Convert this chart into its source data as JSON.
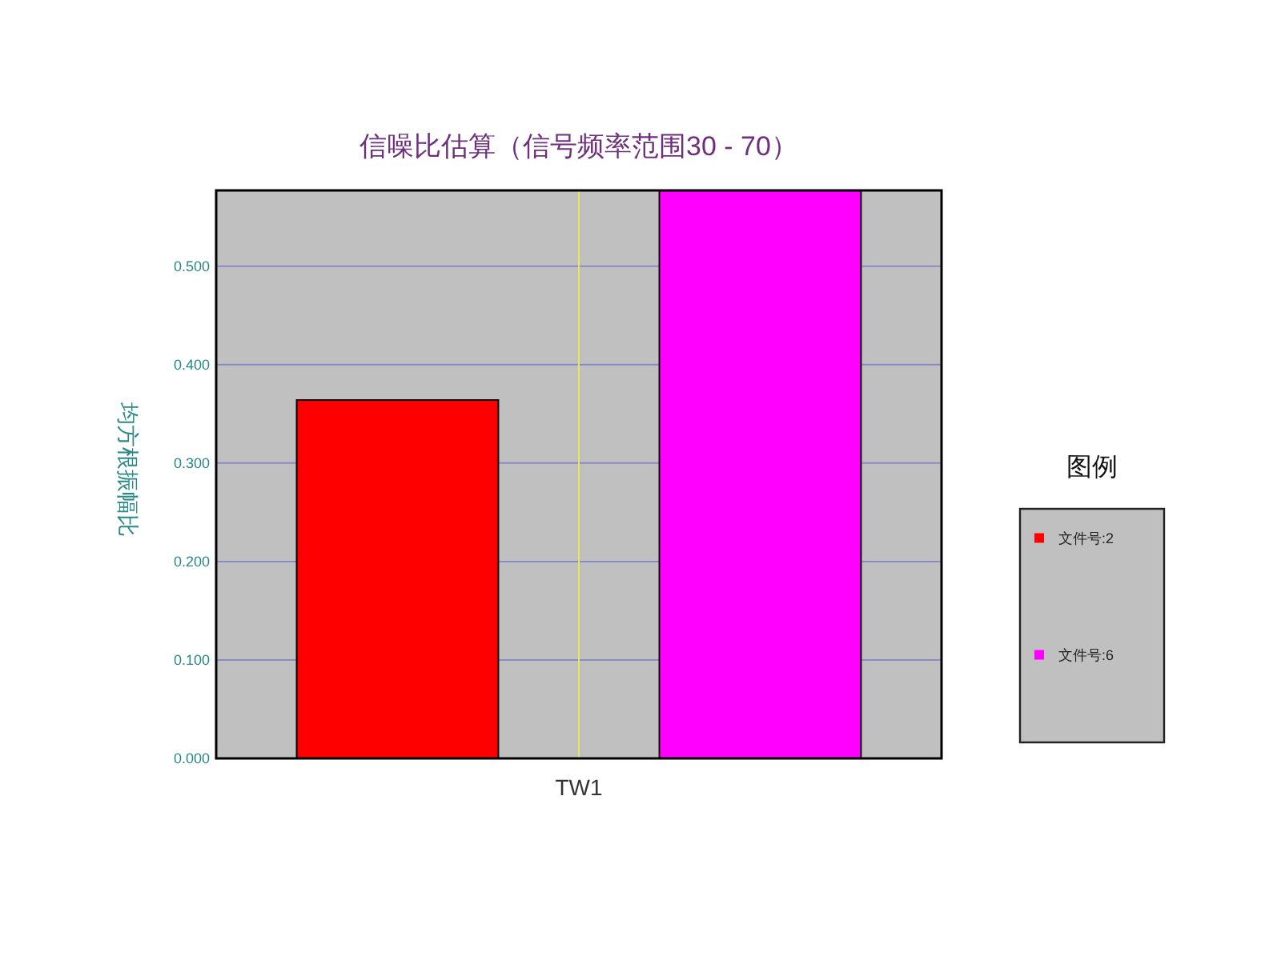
{
  "chart_data": {
    "type": "bar",
    "title": "信噪比估算（信号频率范围30 - 70）",
    "ylabel": "均方根振幅比",
    "categories": [
      "TW1"
    ],
    "series": [
      {
        "name": "文件号:2",
        "color": "#ff0000",
        "values": [
          0.364
        ]
      },
      {
        "name": "文件号:6",
        "color": "#ff00ff",
        "values": [
          0.577
        ]
      }
    ],
    "ylim": [
      0,
      0.577
    ],
    "yticks": [
      {
        "value": 0,
        "label": "0.000"
      },
      {
        "value": 0.1,
        "label": "0.100"
      },
      {
        "value": 0.2,
        "label": "0.200"
      },
      {
        "value": 0.3,
        "label": "0.300"
      },
      {
        "value": 0.4,
        "label": "0.400"
      },
      {
        "value": 0.5,
        "label": "0.500"
      }
    ],
    "ref_lines": [
      {
        "axis": "x",
        "value": "TW1",
        "color": "#e6e65a"
      }
    ],
    "grid": "y",
    "legend": "right",
    "legend_title": "图例"
  }
}
